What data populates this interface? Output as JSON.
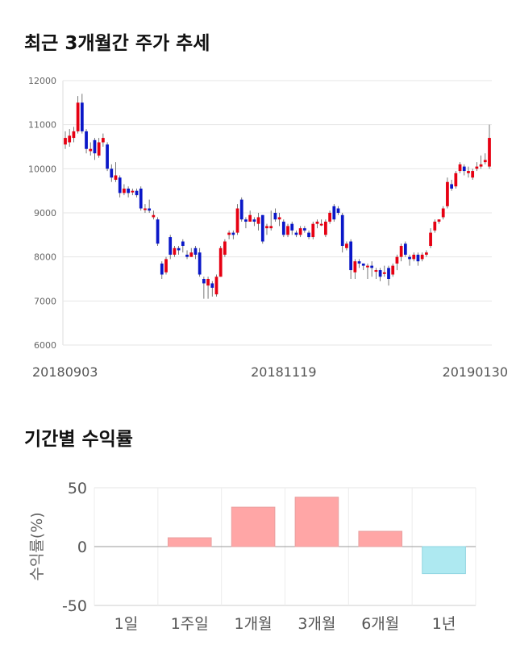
{
  "sections": {
    "price_title": "최근 3개월간 주가 추세",
    "return_title": "기간별 수익률"
  },
  "colors": {
    "up": "#e60012",
    "down": "#0a17c8",
    "positive_bar": "#ffa6a6",
    "negative_bar": "#aee9f1"
  },
  "chart_data": [
    {
      "type": "candlestick",
      "title": "최근 3개월간 주가 추세",
      "ylim": [
        6000,
        12000
      ],
      "yticks": [
        6000,
        7000,
        8000,
        9000,
        10000,
        11000,
        12000
      ],
      "xtick_labels": [
        {
          "label": "20180903",
          "index": 0
        },
        {
          "label": "20181119",
          "index": 52
        },
        {
          "label": "20190130",
          "index": 100
        }
      ],
      "grid": true,
      "candles": [
        [
          10550,
          10700,
          10850,
          10450
        ],
        [
          10600,
          10750,
          10900,
          10500
        ],
        [
          10700,
          10850,
          10950,
          10600
        ],
        [
          10850,
          11500,
          11650,
          10800
        ],
        [
          11500,
          10850,
          11700,
          10800
        ],
        [
          10850,
          10450,
          10900,
          10350
        ],
        [
          10400,
          10450,
          10600,
          10300
        ],
        [
          10650,
          10350,
          10700,
          10200
        ],
        [
          10300,
          10600,
          10700,
          10250
        ],
        [
          10600,
          10700,
          10800,
          10500
        ],
        [
          10550,
          10000,
          10600,
          9950
        ],
        [
          10000,
          9800,
          10100,
          9700
        ],
        [
          9750,
          9850,
          10150,
          9700
        ],
        [
          9800,
          9450,
          9850,
          9350
        ],
        [
          9450,
          9550,
          9650,
          9400
        ],
        [
          9550,
          9450,
          9600,
          9350
        ],
        [
          9500,
          9500,
          9550,
          9400
        ],
        [
          9500,
          9400,
          9550,
          9350
        ],
        [
          9550,
          9100,
          9600,
          9050
        ],
        [
          9100,
          9100,
          9200,
          9000
        ],
        [
          9100,
          9050,
          9300,
          9000
        ],
        [
          8900,
          8950,
          9050,
          8850
        ],
        [
          8850,
          8300,
          8900,
          8250
        ],
        [
          7850,
          7600,
          7900,
          7500
        ],
        [
          7650,
          7950,
          8000,
          7600
        ],
        [
          8450,
          8050,
          8500,
          7950
        ],
        [
          8050,
          8200,
          8250,
          8000
        ],
        [
          8200,
          8150,
          8250,
          8050
        ],
        [
          8350,
          8250,
          8400,
          8100
        ],
        [
          8050,
          8000,
          8150,
          7950
        ],
        [
          8000,
          8100,
          8200,
          8000
        ],
        [
          8200,
          8050,
          8250,
          7950
        ],
        [
          8100,
          7600,
          8200,
          7550
        ],
        [
          7500,
          7400,
          7550,
          7050
        ],
        [
          7350,
          7500,
          7550,
          7050
        ],
        [
          7400,
          7300,
          7450,
          7100
        ],
        [
          7150,
          7550,
          7600,
          7100
        ],
        [
          7550,
          8200,
          8250,
          7550
        ],
        [
          8050,
          8350,
          8400,
          8000
        ],
        [
          8500,
          8550,
          8600,
          8400
        ],
        [
          8550,
          8500,
          8600,
          8400
        ],
        [
          8550,
          9100,
          9200,
          8500
        ],
        [
          9300,
          8850,
          9350,
          8800
        ],
        [
          8850,
          8800,
          8900,
          8650
        ],
        [
          8800,
          8950,
          9050,
          8800
        ],
        [
          8850,
          8800,
          8900,
          8700
        ],
        [
          8750,
          8900,
          9000,
          8600
        ],
        [
          8950,
          8350,
          8950,
          8300
        ],
        [
          8650,
          8700,
          8750,
          8500
        ],
        [
          8650,
          8700,
          9050,
          8600
        ],
        [
          9000,
          8850,
          9100,
          8800
        ],
        [
          8850,
          8900,
          9000,
          8700
        ],
        [
          8800,
          8500,
          8850,
          8450
        ],
        [
          8500,
          8700,
          8750,
          8450
        ],
        [
          8750,
          8600,
          8800,
          8500
        ],
        [
          8550,
          8500,
          8600,
          8450
        ],
        [
          8500,
          8650,
          8700,
          8450
        ],
        [
          8650,
          8600,
          8700,
          8550
        ],
        [
          8550,
          8450,
          8600,
          8400
        ],
        [
          8450,
          8750,
          8800,
          8400
        ],
        [
          8750,
          8800,
          8850,
          8650
        ],
        [
          8750,
          8750,
          8850,
          8700
        ],
        [
          8500,
          8800,
          8850,
          8450
        ],
        [
          8800,
          9000,
          9050,
          8750
        ],
        [
          9150,
          8850,
          9200,
          8800
        ],
        [
          9100,
          9000,
          9150,
          8950
        ],
        [
          8950,
          8250,
          9000,
          8100
        ],
        [
          8200,
          8300,
          8350,
          8150
        ],
        [
          8350,
          7700,
          8400,
          7500
        ],
        [
          7650,
          7900,
          7950,
          7500
        ],
        [
          7900,
          7850,
          7950,
          7750
        ],
        [
          7850,
          7800,
          7850,
          7700
        ],
        [
          7800,
          7800,
          7850,
          7500
        ],
        [
          7800,
          7750,
          7900,
          7550
        ],
        [
          7700,
          7700,
          7750,
          7500
        ],
        [
          7700,
          7550,
          7750,
          7450
        ],
        [
          7650,
          7650,
          7800,
          7550
        ],
        [
          7750,
          7500,
          7800,
          7350
        ],
        [
          7600,
          7800,
          7850,
          7550
        ],
        [
          7850,
          8000,
          8050,
          7700
        ],
        [
          8000,
          8250,
          8300,
          7900
        ],
        [
          8300,
          8050,
          8350,
          8000
        ],
        [
          8000,
          7950,
          8050,
          7800
        ],
        [
          7950,
          8050,
          8100,
          7900
        ],
        [
          8050,
          7900,
          8100,
          7800
        ],
        [
          7950,
          8050,
          8100,
          7900
        ],
        [
          8050,
          8100,
          8150,
          8000
        ],
        [
          8250,
          8550,
          8650,
          8200
        ],
        [
          8600,
          8800,
          8850,
          8550
        ],
        [
          8800,
          8850,
          8850,
          8750
        ],
        [
          8900,
          9100,
          9150,
          8850
        ],
        [
          9150,
          9700,
          9800,
          9100
        ],
        [
          9650,
          9550,
          9750,
          9500
        ],
        [
          9600,
          9900,
          9950,
          9550
        ],
        [
          9950,
          10100,
          10150,
          9900
        ],
        [
          10050,
          9950,
          10100,
          9850
        ],
        [
          9900,
          9950,
          10050,
          9800
        ],
        [
          9800,
          9950,
          10000,
          9750
        ],
        [
          10000,
          10050,
          10150,
          9950
        ],
        [
          10050,
          10100,
          10300,
          10000
        ],
        [
          10150,
          10200,
          10350,
          10100
        ],
        [
          10050,
          10700,
          11000,
          10000
        ]
      ]
    },
    {
      "type": "bar",
      "title": "기간별 수익률",
      "categories": [
        "1일",
        "1주일",
        "1개월",
        "3개월",
        "6개월",
        "1년"
      ],
      "values": [
        0,
        7.5,
        33.5,
        42,
        13,
        -23
      ],
      "ylabel": "수익률(%)",
      "ylim": [
        -50,
        50
      ],
      "yticks": [
        -50,
        0,
        50
      ],
      "grid": true
    }
  ]
}
